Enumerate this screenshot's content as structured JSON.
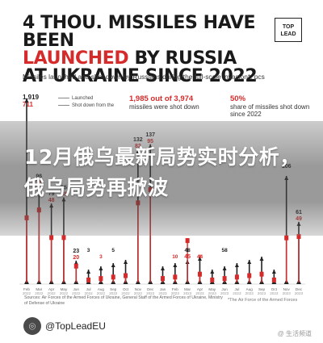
{
  "header": {
    "title_part1": "4 THOU. MISSILES HAVE BEEN",
    "title_part2": "LAUNCHED",
    "title_part3": " BY RUSSIA",
    "title_part4": "AT UKRAINE SINCE 2022",
    "logo_line1": "TOP",
    "logo_line2": "LEAD",
    "subtitle": "Missiles launched and shot down by Russians during the full-scale invasion*, pcs"
  },
  "legend": {
    "launched": "Launched",
    "shot_down": "Shot down from the"
  },
  "stats": {
    "shot_down_big": "1,985 out of 3,974",
    "shot_down_text": "missiles were shot down",
    "share_big": "50%",
    "share_text": "share of missiles shot down since 2022"
  },
  "overlay": {
    "headline": "12月俄乌最新局势实时分析，俄乌局势再掀波"
  },
  "footer": {
    "sources": "Sources: Air Forces of the Armed Forces of Ukraine, General Staff of the Armed Forces of Ukraine, Ministry of Defense of Ukraine",
    "note": "*The Air Force of the Armed Forces",
    "account": "@TopLeadEU",
    "watermark": "@ 生活频道"
  },
  "colors": {
    "accent": "#d62b2b",
    "dark": "#1a1a1a",
    "overlay": "#555555"
  },
  "chart_data": {
    "type": "bar",
    "categories": [
      "Feb 2022",
      "Mar 2022",
      "Apr 2022",
      "May 2022",
      "Jun 2022",
      "Jul 2022",
      "Aug 2022",
      "Sep 2022",
      "Oct 2022",
      "Nov 2022",
      "Dec 2022",
      "Jan 2023",
      "Feb 2023",
      "Mar 2023",
      "Apr 2023",
      "May 2023",
      "Jun 2023",
      "Jul 2023",
      "Aug 2023",
      "Sep 2023",
      "Oct 2023",
      "Nov 2023",
      "Dec 2023"
    ],
    "series": [
      {
        "name": "Launched",
        "values": [
          1919,
          96,
          79,
          85,
          23,
          null,
          null,
          null,
          null,
          132,
          137,
          null,
          null,
          null,
          null,
          null,
          null,
          null,
          null,
          null,
          null,
          106,
          61
        ]
      },
      {
        "name": "Shot down",
        "values": [
          711,
          75,
          48,
          48,
          20,
          null,
          null,
          null,
          null,
          82,
          95,
          null,
          null,
          45,
          null,
          null,
          null,
          null,
          null,
          null,
          null,
          null,
          49
        ]
      }
    ],
    "small_labels": [
      "3",
      "3",
      "5",
      "10",
      "1",
      "4",
      "48",
      "44",
      "58"
    ],
    "annotations": [
      "1,919",
      "711"
    ]
  }
}
